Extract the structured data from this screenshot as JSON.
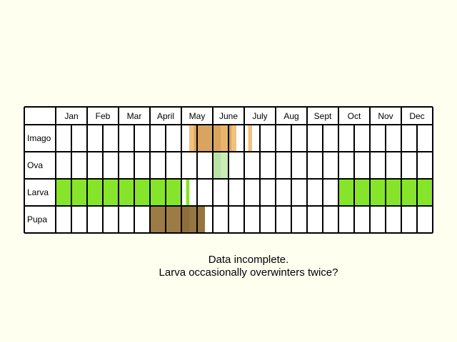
{
  "chart_data": {
    "type": "table",
    "months": [
      "Jan",
      "Feb",
      "Mar",
      "Apr",
      "May",
      "June",
      "July",
      "Aug",
      "Sept",
      "Oct",
      "Nov",
      "Dec"
    ],
    "month_labels": [
      "Jan",
      "Feb",
      "Mar",
      "April",
      "May",
      "June",
      "July",
      "Aug",
      "Sept",
      "Oct",
      "Nov",
      "Dec"
    ],
    "subdivisions_per_month": 4,
    "stages": [
      {
        "label": "Imago",
        "segments": [
          {
            "start": 17.0,
            "end": 17.6,
            "color": "#f2c27a"
          },
          {
            "start": 17.6,
            "end": 18.0,
            "color": "#d9a460"
          },
          {
            "start": 18.0,
            "end": 21.0,
            "color": "#d9a460"
          },
          {
            "start": 21.0,
            "end": 22.0,
            "color": "#e8b56a"
          },
          {
            "start": 22.0,
            "end": 22.4,
            "color": "#d9a460"
          },
          {
            "start": 22.4,
            "end": 23.0,
            "color": "#f2c27a"
          },
          {
            "start": 24.5,
            "end": 25.0,
            "color": "#f2c27a"
          }
        ]
      },
      {
        "label": "Ova",
        "segments": [
          {
            "start": 20.0,
            "end": 21.0,
            "color": "#b9e2a6"
          },
          {
            "start": 21.0,
            "end": 22.0,
            "color": "#c9edb2"
          }
        ]
      },
      {
        "label": "Larva",
        "segments": [
          {
            "start": 0.0,
            "end": 16.0,
            "color": "#86e52a"
          },
          {
            "start": 16.6,
            "end": 17.0,
            "color": "#86e52a"
          },
          {
            "start": 36.0,
            "end": 48.0,
            "color": "#86e52a"
          }
        ]
      },
      {
        "label": "Pupa",
        "segments": [
          {
            "start": 12.0,
            "end": 16.0,
            "color": "#9c7b44"
          },
          {
            "start": 16.0,
            "end": 17.0,
            "color": "#8d6e3b"
          },
          {
            "start": 17.0,
            "end": 19.0,
            "color": "#957640"
          }
        ]
      }
    ]
  },
  "notes": {
    "line1": "Data incomplete.",
    "line2": "Larva occasionally overwinters twice?"
  }
}
